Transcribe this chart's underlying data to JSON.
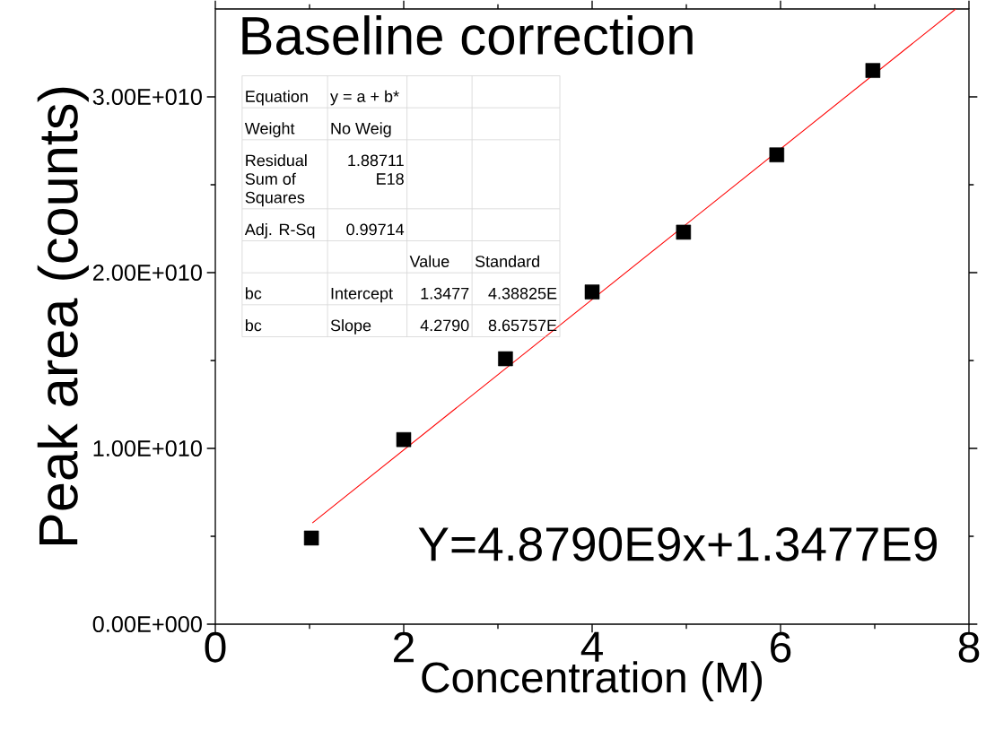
{
  "chart_data": {
    "type": "scatter",
    "title": "Baseline correction",
    "xlabel": "Concentration (M)",
    "ylabel": "Peak area (counts)",
    "xlim": [
      0,
      8
    ],
    "xticks": [
      0,
      2,
      4,
      6,
      8
    ],
    "ylim": [
      0,
      35000000000
    ],
    "yticks": [
      {
        "value": 0,
        "label": "0.00E+000"
      },
      {
        "value": 10000000000,
        "label": "1.00E+010"
      },
      {
        "value": 20000000000,
        "label": "2.00E+010"
      },
      {
        "value": 30000000000,
        "label": "3.00E+010"
      }
    ],
    "series": [
      {
        "marker": "square",
        "color": "#000000",
        "x": [
          1.02,
          2.0,
          3.08,
          4.0,
          4.97,
          5.96,
          6.98
        ],
        "values": [
          4900000000,
          10500000000,
          15100000000,
          18900000000,
          22300000000,
          26700000000,
          31500000000
        ]
      },
      {
        "type": "line",
        "marker": "none",
        "color": "#ff0000",
        "x": [
          1.03,
          7.86
        ],
        "values": [
          5760000000,
          35000000000
        ]
      }
    ],
    "annotations": [
      "Equation",
      "y = a + b*",
      "Weight",
      "No Weig",
      "Residual Sum of Squares",
      "1.88711 E18",
      "Adj. R-Sq",
      "0.99714",
      "Value",
      "Standard",
      "bc",
      "Intercept",
      "1.3477",
      "4.38825E",
      "bc",
      "Slope",
      "4.2790",
      "8.65757E",
      "Y=4.8790E9x+1.3477E9"
    ]
  }
}
